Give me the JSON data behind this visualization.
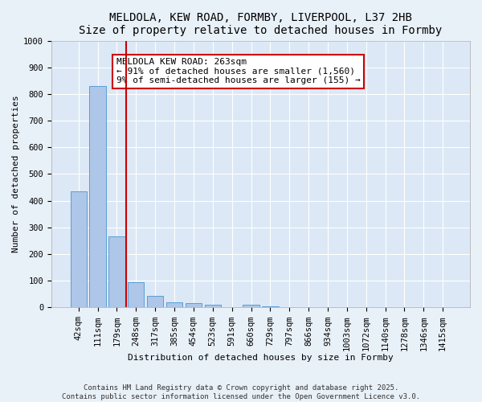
{
  "title_line1": "MELDOLA, KEW ROAD, FORMBY, LIVERPOOL, L37 2HB",
  "title_line2": "Size of property relative to detached houses in Formby",
  "xlabel": "Distribution of detached houses by size in Formby",
  "ylabel": "Number of detached properties",
  "bar_labels": [
    "42sqm",
    "111sqm",
    "179sqm",
    "248sqm",
    "317sqm",
    "385sqm",
    "454sqm",
    "523sqm",
    "591sqm",
    "660sqm",
    "729sqm",
    "797sqm",
    "866sqm",
    "934sqm",
    "1003sqm",
    "1072sqm",
    "1140sqm",
    "1278sqm",
    "1346sqm",
    "1415sqm"
  ],
  "bar_values": [
    435,
    830,
    265,
    95,
    43,
    20,
    15,
    10,
    0,
    10,
    5,
    2,
    1,
    1,
    1,
    0,
    0,
    1,
    0,
    1
  ],
  "bar_color": "#aec6e8",
  "bar_edge_color": "#5a9fd4",
  "vline_x_index": 3,
  "vline_color": "#cc0000",
  "annotation_text": "MELDOLA KEW ROAD: 263sqm\n← 91% of detached houses are smaller (1,560)\n9% of semi-detached houses are larger (155) →",
  "annotation_box_color": "#cc0000",
  "ylim": [
    0,
    1000
  ],
  "yticks": [
    0,
    100,
    200,
    300,
    400,
    500,
    600,
    700,
    800,
    900,
    1000
  ],
  "fig_bg_color": "#e8f0f8",
  "plot_bg_color": "#dce8f5",
  "footnote": "Contains HM Land Registry data © Crown copyright and database right 2025.\nContains public sector information licensed under the Open Government Licence v3.0.",
  "title_fontsize": 10,
  "axis_label_fontsize": 8,
  "tick_fontsize": 7.5,
  "annotation_fontsize": 8,
  "footnote_fontsize": 6.5
}
